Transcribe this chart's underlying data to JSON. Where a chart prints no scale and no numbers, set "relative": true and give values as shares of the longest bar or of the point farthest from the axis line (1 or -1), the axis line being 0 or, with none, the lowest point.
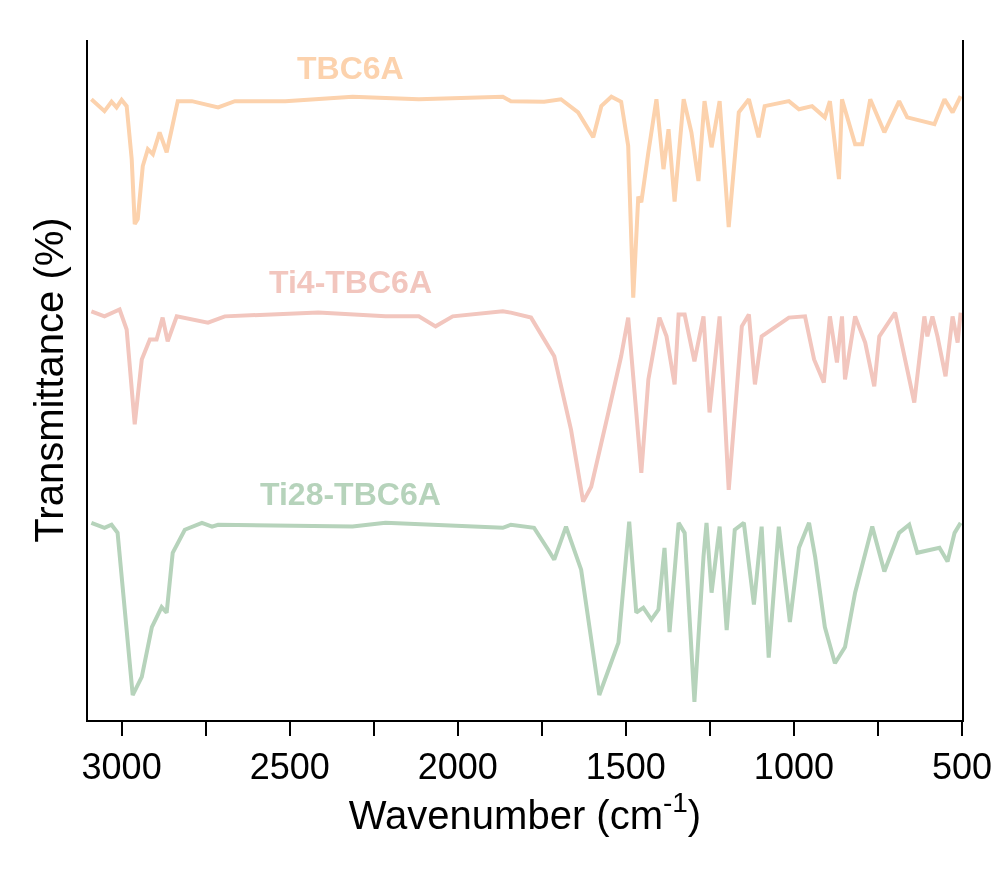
{
  "chart_data": {
    "type": "line",
    "relative": true,
    "xlabel": "Wavenumber (cm$^{-1}$)",
    "ylabel": "Transmittance (%)",
    "xlim": [
      3100,
      500
    ],
    "xticks": [
      3000,
      {
        "value": 2750,
        "label": null
      },
      2500,
      {
        "value": 2250,
        "label": null
      },
      2000,
      {
        "value": 1750,
        "label": null
      },
      1500,
      {
        "value": 1250,
        "label": null
      },
      1000,
      {
        "value": 750,
        "label": null
      },
      500
    ],
    "grid": false,
    "legend": false,
    "marker": "none",
    "line_style": "solid",
    "tick_labels": "x",
    "series": [
      {
        "name": "TBC6A",
        "color": "#fcd2ad",
        "x": [
          3090,
          3051,
          3030,
          3015,
          3000,
          2985,
          2970,
          2961,
          2952,
          2937,
          2922,
          2907,
          2887,
          2866,
          2851,
          2833,
          2791,
          2713,
          2663,
          2513,
          2313,
          2116,
          1866,
          1842,
          1743,
          1693,
          1642,
          1597,
          1573,
          1543,
          1514,
          1493,
          1478,
          1463,
          1454,
          1433,
          1409,
          1388,
          1373,
          1355,
          1328,
          1305,
          1284,
          1266,
          1245,
          1221,
          1194,
          1164,
          1134,
          1105,
          1087,
          1015,
          985,
          946,
          908,
          893,
          866,
          857,
          818,
          797,
          773,
          731,
          687,
          663,
          582,
          552,
          528,
          504
        ],
        "values": [
          0.995,
          0.976,
          0.991,
          0.982,
          0.994,
          0.984,
          0.899,
          0.795,
          0.803,
          0.888,
          0.915,
          0.907,
          0.942,
          0.91,
          0.947,
          0.992,
          0.992,
          0.982,
          0.992,
          0.992,
          0.999,
          0.995,
          0.999,
          0.992,
          0.991,
          0.995,
          0.974,
          0.934,
          0.984,
          0.999,
          0.991,
          0.92,
          0.677,
          0.839,
          0.83,
          0.91,
          0.995,
          0.883,
          0.947,
          0.831,
          0.995,
          0.942,
          0.864,
          0.992,
          0.918,
          0.992,
          0.79,
          0.974,
          0.995,
          0.934,
          0.984,
          0.992,
          0.979,
          0.984,
          0.966,
          0.992,
          0.867,
          0.995,
          0.923,
          0.923,
          0.995,
          0.942,
          0.992,
          0.966,
          0.955,
          0.995,
          0.974,
          1.0
        ]
      },
      {
        "name": "Ti4-TBC6A",
        "color": "#f2c6be",
        "x": [
          3090,
          3051,
          3006,
          2985,
          2961,
          2940,
          2916,
          2896,
          2878,
          2863,
          2836,
          2743,
          2693,
          2415,
          2215,
          2116,
          2066,
          2015,
          1866,
          1842,
          1782,
          1713,
          1663,
          1627,
          1603,
          1552,
          1514,
          1493,
          1469,
          1454,
          1433,
          1400,
          1379,
          1355,
          1343,
          1325,
          1296,
          1269,
          1251,
          1221,
          1194,
          1155,
          1134,
          1116,
          1096,
          1015,
          967,
          940,
          911,
          893,
          872,
          857,
          848,
          818,
          788,
          761,
          746,
          699,
          642,
          612,
          603,
          588,
          573,
          549,
          528,
          513,
          504
        ],
        "values": [
          0.655,
          0.647,
          0.658,
          0.626,
          0.474,
          0.578,
          0.61,
          0.61,
          0.645,
          0.607,
          0.647,
          0.637,
          0.647,
          0.653,
          0.647,
          0.647,
          0.631,
          0.647,
          0.655,
          0.653,
          0.645,
          0.583,
          0.465,
          0.35,
          0.374,
          0.493,
          0.583,
          0.645,
          0.493,
          0.396,
          0.546,
          0.645,
          0.615,
          0.538,
          0.65,
          0.65,
          0.575,
          0.647,
          0.493,
          0.647,
          0.369,
          0.631,
          0.65,
          0.538,
          0.615,
          0.645,
          0.647,
          0.578,
          0.541,
          0.647,
          0.573,
          0.647,
          0.546,
          0.647,
          0.605,
          0.535,
          0.615,
          0.653,
          0.509,
          0.647,
          0.615,
          0.647,
          0.615,
          0.551,
          0.647,
          0.605,
          0.653
        ]
      },
      {
        "name": "Ti28-TBC6A",
        "color": "#b6d3bb",
        "x": [
          3090,
          3051,
          3030,
          3012,
          2967,
          2940,
          2910,
          2881,
          2866,
          2848,
          2812,
          2761,
          2731,
          2713,
          2313,
          2215,
          1866,
          1842,
          1773,
          1731,
          1713,
          1678,
          1633,
          1579,
          1522,
          1490,
          1469,
          1448,
          1424,
          1403,
          1385,
          1370,
          1343,
          1325,
          1296,
          1269,
          1260,
          1245,
          1221,
          1200,
          1176,
          1149,
          1119,
          1096,
          1075,
          1045,
          1012,
          985,
          955,
          937,
          908,
          878,
          848,
          818,
          767,
          731,
          687,
          657,
          633,
          567,
          543,
          522,
          504
        ],
        "values": [
          0.316,
          0.308,
          0.313,
          0.3,
          0.04,
          0.069,
          0.149,
          0.181,
          0.172,
          0.268,
          0.305,
          0.316,
          0.31,
          0.313,
          0.31,
          0.316,
          0.308,
          0.313,
          0.308,
          0.273,
          0.257,
          0.31,
          0.241,
          0.04,
          0.124,
          0.318,
          0.172,
          0.18,
          0.161,
          0.177,
          0.276,
          0.141,
          0.316,
          0.3,
          0.029,
          0.262,
          0.316,
          0.204,
          0.31,
          0.144,
          0.305,
          0.316,
          0.185,
          0.31,
          0.1,
          0.31,
          0.157,
          0.276,
          0.316,
          0.262,
          0.149,
          0.091,
          0.117,
          0.204,
          0.31,
          0.238,
          0.3,
          0.313,
          0.268,
          0.276,
          0.254,
          0.3,
          0.316
        ]
      }
    ]
  }
}
